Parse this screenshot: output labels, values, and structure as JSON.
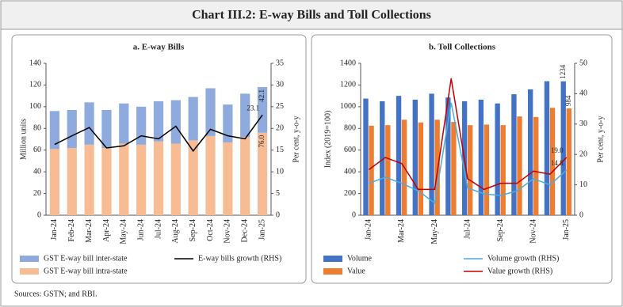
{
  "title": "Chart III.2: E-way Bills and Toll Collections",
  "source": "Sources: GSTN; and RBI.",
  "chart_data": [
    {
      "type": "bar",
      "stacked": true,
      "title": "a. E-way Bills",
      "ylabel": "Million units",
      "y2label": "Per cent, y-o-y",
      "categories": [
        "Jan-24",
        "Feb-24",
        "Mar-24",
        "Apr-24",
        "May-24",
        "Jun-24",
        "Jul-24",
        "Aug-24",
        "Sep-24",
        "Oct-24",
        "Nov-24",
        "Dec-24",
        "Jan-25"
      ],
      "ylim": [
        0,
        140
      ],
      "yticks": [
        0,
        20,
        40,
        60,
        80,
        100,
        120,
        140
      ],
      "y2lim": [
        0,
        35
      ],
      "y2ticks": [
        0,
        5,
        10,
        15,
        20,
        25,
        30,
        35
      ],
      "series": [
        {
          "name": "GST E-way bill inter-state",
          "type": "bar",
          "color": "#8faadc",
          "values": [
            35,
            35,
            39,
            35,
            37,
            35,
            37,
            40,
            40,
            44,
            35,
            40,
            42.1
          ],
          "value_labels": [
            null,
            null,
            null,
            null,
            null,
            null,
            null,
            null,
            null,
            null,
            null,
            null,
            "42.1"
          ]
        },
        {
          "name": "GST E-way bill intra-state",
          "type": "bar",
          "color": "#f8bc94",
          "values": [
            61,
            62,
            65,
            62,
            66,
            65,
            68,
            66,
            69,
            73,
            67,
            72,
            76.0
          ],
          "value_labels": [
            null,
            null,
            null,
            null,
            null,
            null,
            null,
            null,
            null,
            null,
            null,
            null,
            "76.0"
          ]
        },
        {
          "name": "E-way bills growth (RHS)",
          "type": "line",
          "axis": "y2",
          "color": "#000000",
          "values": [
            16.3,
            18.3,
            20.2,
            15.5,
            16.0,
            18.3,
            17.6,
            20.5,
            14.8,
            19.8,
            18.3,
            17.6,
            23.1
          ],
          "value_labels": [
            null,
            null,
            null,
            null,
            null,
            null,
            null,
            null,
            null,
            null,
            null,
            null,
            "23.1"
          ]
        }
      ]
    },
    {
      "type": "bar",
      "stacked": false,
      "title": "b. Toll Collections",
      "ylabel": "Index (2019=100)",
      "y2label": "Per cent, y-o-y",
      "categories": [
        "Jan-24",
        null,
        "Mar-24",
        null,
        "May-24",
        null,
        "Jul-24",
        null,
        "Sep-24",
        null,
        "Nov-24",
        null,
        "Jan-25"
      ],
      "ylim": [
        0,
        1400
      ],
      "yticks": [
        0,
        200,
        400,
        600,
        800,
        1000,
        1200,
        1400
      ],
      "y2lim": [
        0,
        50
      ],
      "y2ticks": [
        0,
        10,
        20,
        30,
        40,
        50
      ],
      "series": [
        {
          "name": "Volume",
          "type": "bar",
          "color": "#4472c4",
          "values": [
            1075,
            1050,
            1100,
            1065,
            1120,
            1085,
            1050,
            1065,
            1030,
            1115,
            1160,
            1235,
            1234
          ],
          "value_labels": [
            null,
            null,
            null,
            null,
            null,
            null,
            null,
            null,
            null,
            null,
            null,
            null,
            "1234"
          ]
        },
        {
          "name": "Value",
          "type": "bar",
          "color": "#ed7d31",
          "values": [
            825,
            830,
            880,
            855,
            880,
            860,
            830,
            835,
            830,
            910,
            905,
            990,
            984
          ],
          "value_labels": [
            null,
            null,
            null,
            null,
            null,
            null,
            null,
            null,
            null,
            null,
            null,
            null,
            "984"
          ]
        },
        {
          "name": "Volume growth (RHS)",
          "type": "line",
          "axis": "y2",
          "color": "#4bacdf",
          "values": [
            10.5,
            12.5,
            10.5,
            8,
            4,
            37,
            9,
            7,
            6.5,
            8,
            12,
            10,
            14.8
          ],
          "value_labels": [
            null,
            null,
            null,
            null,
            null,
            null,
            null,
            null,
            null,
            null,
            null,
            null,
            "14.8"
          ]
        },
        {
          "name": "Value growth (RHS)",
          "type": "line",
          "axis": "y2",
          "color": "#c00000",
          "values": [
            15,
            19,
            17,
            8.5,
            8.5,
            45,
            12,
            8.5,
            10.5,
            10.5,
            14.5,
            13.5,
            19.0
          ],
          "value_labels": [
            null,
            null,
            null,
            null,
            null,
            null,
            null,
            null,
            null,
            null,
            null,
            null,
            "19.0"
          ]
        }
      ]
    }
  ]
}
